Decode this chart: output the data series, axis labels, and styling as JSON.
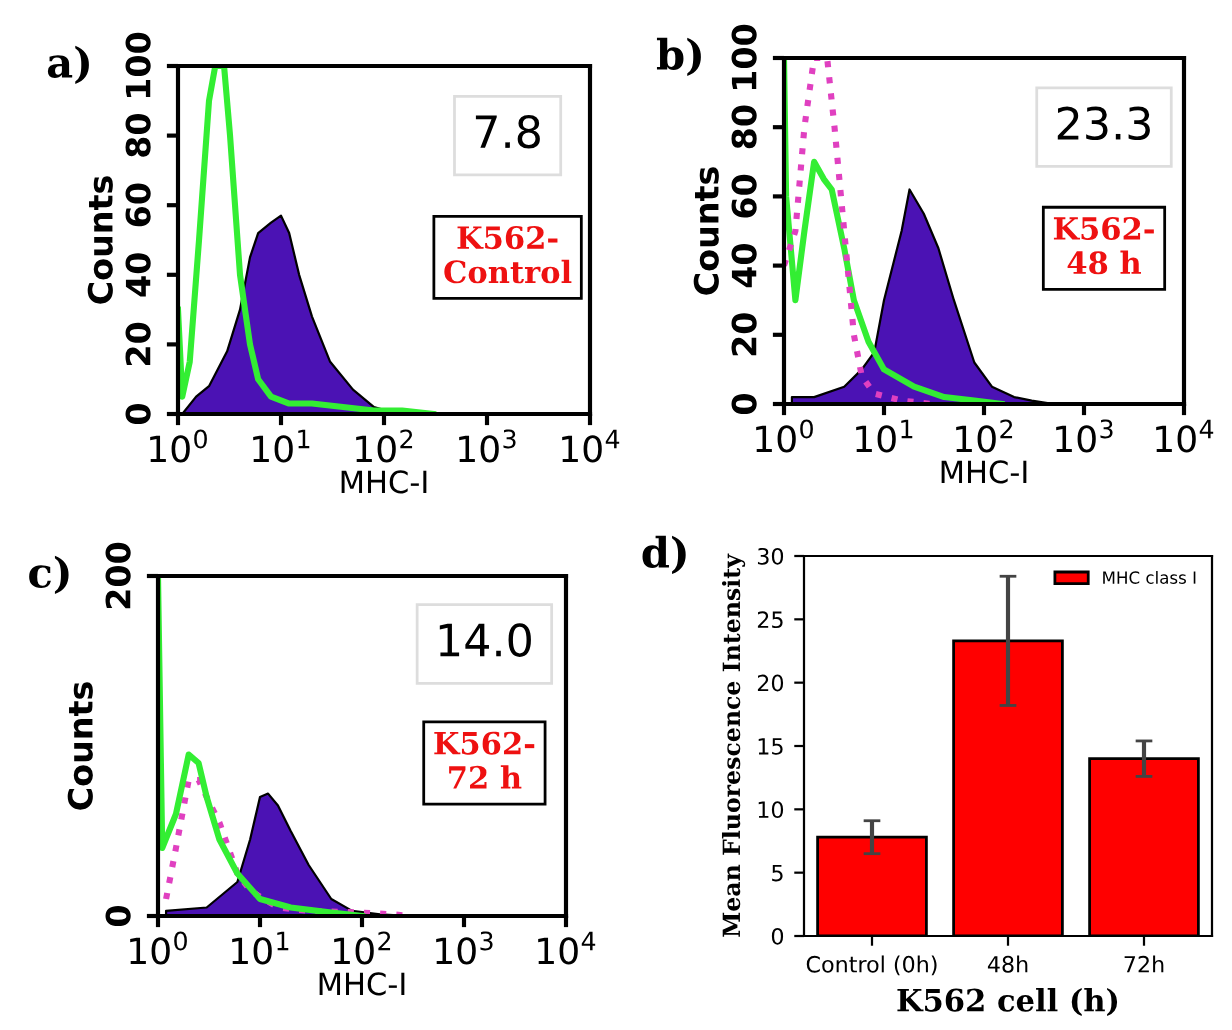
{
  "chart_data": [
    {
      "type": "area",
      "title": "a)",
      "xlabel": "MHC-I",
      "ylabel": "Counts",
      "log": "x",
      "xlim": [
        1,
        10000
      ],
      "ylim": [
        0,
        100
      ],
      "xticks": [
        {
          "value": 1,
          "label": "10$^{0}$"
        },
        {
          "value": 10,
          "label": "10$^{1}$"
        },
        {
          "value": 100,
          "label": "10$^{2}$"
        },
        {
          "value": 1000,
          "label": "10$^{3}$"
        },
        {
          "value": 10000,
          "label": "10$^{4}$"
        }
      ],
      "yticks": [
        0,
        20,
        40,
        60,
        80,
        100
      ],
      "annotations": [
        "7.8",
        "K562-\nControl"
      ],
      "series": [
        {
          "type": "area",
          "color": "#4b12b4",
          "x": [
            1.1,
            1.5,
            2,
            3,
            4,
            5,
            6,
            8,
            10,
            12,
            15,
            20,
            30,
            50,
            80,
            120,
            200
          ],
          "values": [
            0,
            5,
            8,
            18,
            30,
            45,
            52,
            55,
            57,
            52,
            40,
            28,
            15,
            7,
            2,
            0.5,
            0
          ]
        },
        {
          "type": "line",
          "color": "#33ee33",
          "line_style": "solid",
          "x": [
            1,
            1.1,
            1.3,
            1.6,
            2,
            2.3,
            2.8,
            3.2,
            4,
            5,
            6,
            8,
            12,
            20,
            40,
            80,
            150,
            300
          ],
          "values": [
            30,
            5,
            15,
            50,
            90,
            100,
            100,
            80,
            40,
            20,
            10,
            5,
            3,
            3,
            2,
            1,
            1,
            0
          ]
        }
      ]
    },
    {
      "type": "area",
      "title": "b)",
      "xlabel": "MHC-I",
      "ylabel": "Counts",
      "log": "x",
      "xlim": [
        1,
        10000
      ],
      "ylim": [
        0,
        100
      ],
      "xticks": [
        {
          "value": 1,
          "label": "10$^{0}$"
        },
        {
          "value": 10,
          "label": "10$^{1}$"
        },
        {
          "value": 100,
          "label": "10$^{2}$"
        },
        {
          "value": 1000,
          "label": "10$^{3}$"
        },
        {
          "value": 10000,
          "label": "10$^{4}$"
        }
      ],
      "yticks": [
        0,
        20,
        40,
        60,
        80,
        100
      ],
      "annotations": [
        "23.3",
        "K562-\n48 h"
      ],
      "series": [
        {
          "type": "area",
          "color": "#4b12b4",
          "x": [
            1.2,
            2,
            4,
            6,
            8,
            10,
            15,
            18,
            25,
            35,
            50,
            80,
            120,
            200,
            300,
            500
          ],
          "values": [
            2,
            2,
            5,
            10,
            15,
            30,
            50,
            62,
            55,
            45,
            30,
            12,
            5,
            2,
            1,
            0
          ]
        },
        {
          "type": "line",
          "color": "#33ee33",
          "line_style": "solid",
          "x": [
            1,
            1.05,
            1.3,
            1.6,
            2,
            2.5,
            3,
            4,
            5,
            7,
            10,
            20,
            40,
            80,
            150
          ],
          "values": [
            100,
            60,
            30,
            50,
            70,
            65,
            62,
            45,
            30,
            18,
            10,
            5,
            2,
            1,
            0
          ]
        },
        {
          "type": "line",
          "color": "#e040c0",
          "line_style": "dotted",
          "x": [
            1,
            1.3,
            1.6,
            2,
            2.7,
            3.2,
            4,
            5,
            6,
            8,
            15,
            30
          ],
          "values": [
            40,
            50,
            80,
            100,
            100,
            80,
            50,
            20,
            8,
            3,
            1,
            0
          ]
        }
      ]
    },
    {
      "type": "area",
      "title": "c)",
      "xlabel": "MHC-I",
      "ylabel": "Counts",
      "log": "x",
      "xlim": [
        1,
        10000
      ],
      "ylim": [
        0,
        200
      ],
      "xticks": [
        {
          "value": 1,
          "label": "10$^{0}$"
        },
        {
          "value": 10,
          "label": "10$^{1}$"
        },
        {
          "value": 100,
          "label": "10$^{2}$"
        },
        {
          "value": 1000,
          "label": "10$^{3}$"
        },
        {
          "value": 10000,
          "label": "10$^{4}$"
        }
      ],
      "yticks": [
        0,
        200
      ],
      "annotations": [
        "14.0",
        "K562-\n72 h"
      ],
      "series": [
        {
          "type": "area",
          "color": "#4b12b4",
          "x": [
            1.2,
            3,
            6,
            8,
            10,
            12,
            15,
            20,
            30,
            50,
            80,
            150,
            300
          ],
          "values": [
            3,
            5,
            20,
            45,
            70,
            72,
            65,
            50,
            30,
            10,
            3,
            1,
            0
          ]
        },
        {
          "type": "line",
          "color": "#e040c0",
          "line_style": "dotted",
          "x": [
            1.2,
            1.5,
            2,
            2.5,
            3,
            4,
            6,
            8,
            15,
            30,
            100,
            200,
            300
          ],
          "values": [
            10,
            40,
            80,
            80,
            70,
            55,
            25,
            15,
            5,
            3,
            2,
            1,
            0
          ]
        },
        {
          "type": "line",
          "color": "#33ee33",
          "line_style": "solid",
          "x": [
            1,
            1.1,
            1.5,
            2,
            2.5,
            3,
            4,
            6,
            10,
            20,
            50,
            100
          ],
          "values": [
            200,
            40,
            60,
            95,
            90,
            70,
            45,
            25,
            10,
            5,
            2,
            0
          ]
        }
      ]
    },
    {
      "type": "bar",
      "title": "d)",
      "xlabel": "K562 cell (h)",
      "ylabel": "Mean Fluorescence Intensity",
      "categories": [
        "Control (0h)",
        "48h",
        "72h"
      ],
      "ylim": [
        0,
        30
      ],
      "yticks": [
        0,
        5,
        10,
        15,
        20,
        25,
        30
      ],
      "legend": "top right",
      "series": [
        {
          "name": "MHC class I",
          "color": "#ff0000",
          "values": [
            7.8,
            23.3,
            14.0
          ],
          "errors": [
            [
              6.5,
              9.1
            ],
            [
              18.2,
              28.4
            ],
            [
              12.6,
              15.4
            ]
          ]
        }
      ]
    }
  ]
}
